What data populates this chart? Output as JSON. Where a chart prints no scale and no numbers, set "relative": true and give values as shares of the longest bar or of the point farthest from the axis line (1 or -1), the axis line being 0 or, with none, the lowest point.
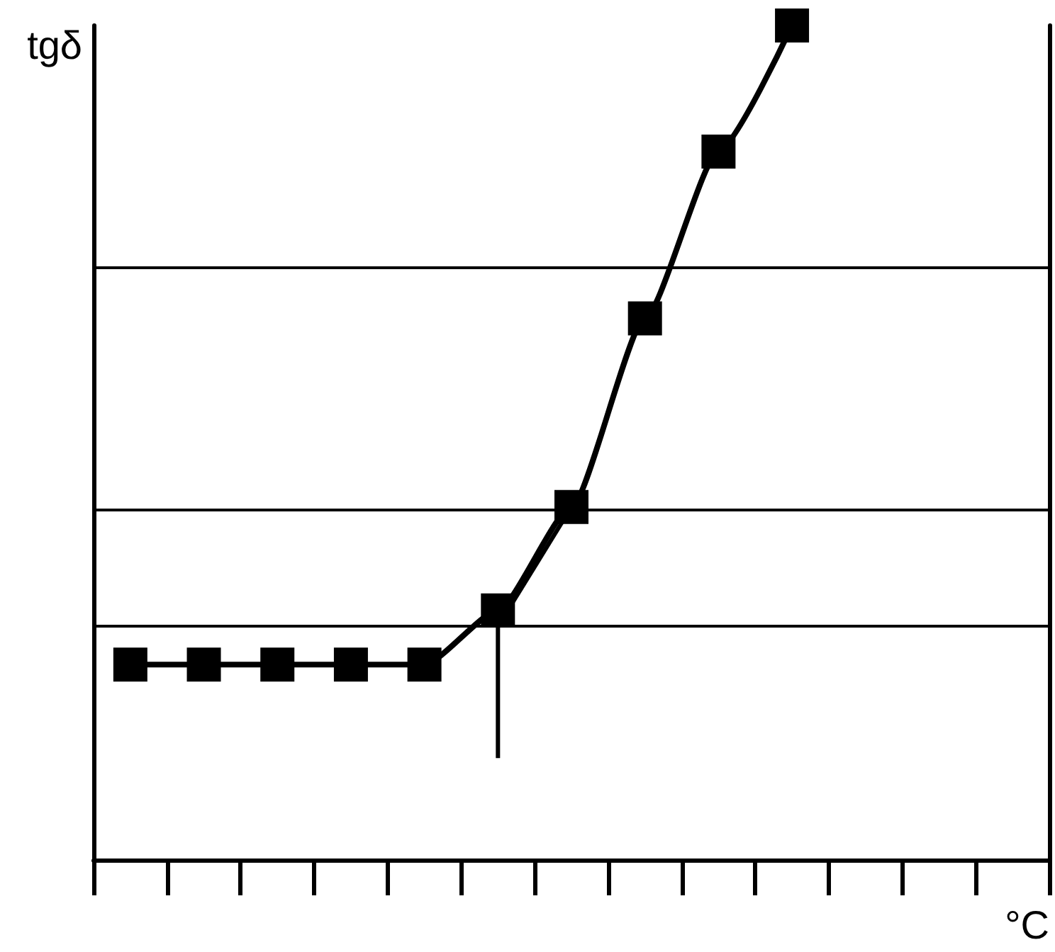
{
  "chart_data": {
    "type": "line",
    "xlabel": "°C",
    "ylabel": "tgδ",
    "relative": true,
    "categories": [
      null,
      null,
      null,
      null,
      null,
      null,
      null,
      null,
      null,
      null,
      null,
      null,
      null
    ],
    "series": [
      {
        "color": "#000000",
        "values": [
          0.234,
          0.234,
          0.234,
          0.234,
          0.234,
          0.299,
          0.423,
          0.649,
          0.849,
          1,
          null,
          null,
          null
        ]
      }
    ],
    "marker": "square",
    "line_style": "solid",
    "grid": false,
    "ref_lines": [
      {
        "axis": "y",
        "value": 0.708
      },
      {
        "axis": "y",
        "value": 0.423
      },
      {
        "axis": "y",
        "value": 0.28
      }
    ]
  }
}
